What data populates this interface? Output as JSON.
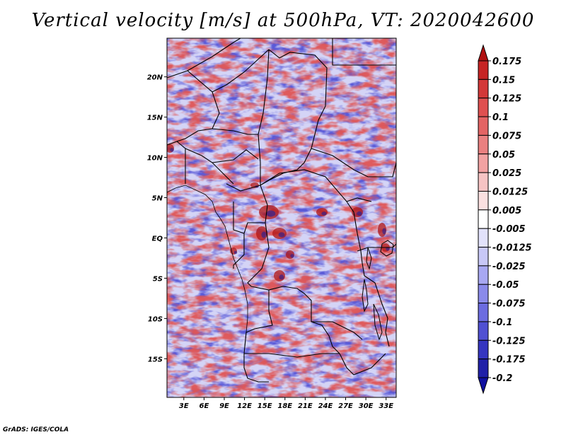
{
  "chart_data": {
    "type": "heatmap",
    "title": "Vertical velocity [m/s] at 500hPa, VT: 2020042600",
    "xlabel": "",
    "ylabel": "",
    "x_ticks": [
      "3E",
      "6E",
      "9E",
      "12E",
      "15E",
      "18E",
      "21E",
      "24E",
      "27E",
      "30E",
      "33E"
    ],
    "x_tick_values": [
      3,
      6,
      9,
      12,
      15,
      18,
      21,
      24,
      27,
      30,
      33
    ],
    "y_ticks": [
      "20N",
      "15N",
      "10N",
      "5N",
      "EQ",
      "5S",
      "10S",
      "15S"
    ],
    "y_tick_values": [
      20,
      15,
      10,
      5,
      0,
      -5,
      -10,
      -15
    ],
    "xlim": [
      0.5,
      34.5
    ],
    "ylim": [
      -19.8,
      24.8
    ],
    "colorbar": {
      "levels": [
        "0.175",
        "0.15",
        "0.125",
        "0.1",
        "0.075",
        "0.05",
        "0.025",
        "0.0125",
        "0.005",
        "-0.005",
        "-0.0125",
        "-0.025",
        "-0.05",
        "-0.075",
        "-0.1",
        "-0.125",
        "-0.175",
        "-0.2"
      ],
      "colors": [
        "#b01010",
        "#c62424",
        "#d33838",
        "#df5050",
        "#e46464",
        "#ea8080",
        "#f2a2a2",
        "#f7c4c4",
        "#fbe0e0",
        "#ffffff",
        "#e2e2fb",
        "#c8c8f7",
        "#a8a8f2",
        "#8a8aea",
        "#6c6ce0",
        "#5050d2",
        "#3535c0",
        "#2020a8",
        "#1010a0"
      ]
    }
  },
  "footer": {
    "stamp": "GrADS: IGES/COLA"
  }
}
